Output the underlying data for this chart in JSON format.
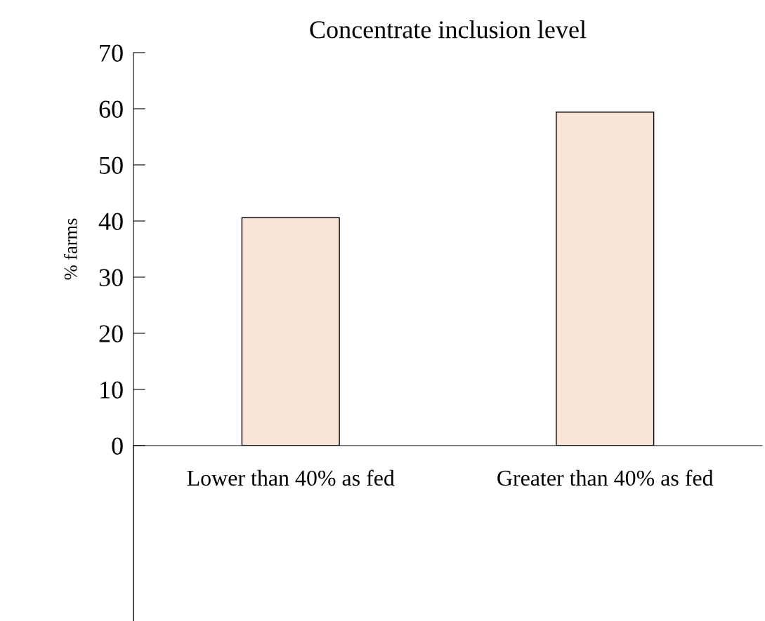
{
  "chart_data": {
    "type": "bar",
    "title": "Concentrate inclusion level",
    "ylabel": "% farms",
    "categories": [
      "Lower than 40% as fed",
      "Greater than 40% as fed"
    ],
    "values": [
      40.6,
      59.4
    ],
    "color": "#f9e4d8",
    "ylim": [
      0,
      70
    ],
    "yticks": [
      0,
      10,
      20,
      30,
      40,
      50,
      60,
      70
    ],
    "grid": false,
    "legend": false
  }
}
